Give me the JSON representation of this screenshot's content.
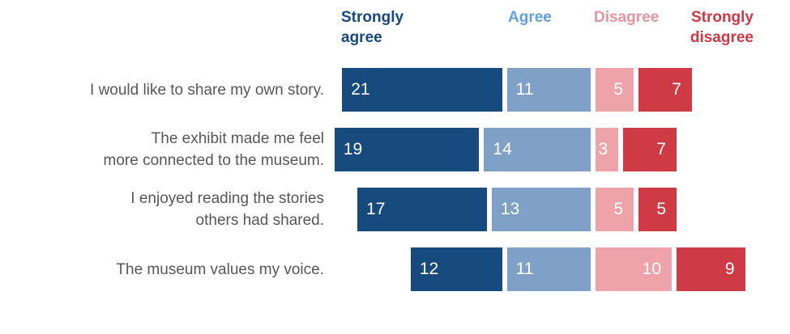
{
  "chart_data": {
    "type": "bar",
    "variant": "horizontal-diverging-stacked-likert",
    "title": "",
    "xlabel": "",
    "ylabel": "",
    "grid": false,
    "legend_position": "top",
    "value_labels_inside_bars": true,
    "categories": [
      "I would like to share my own story.",
      "The exhibit made me feel more connected to the museum.",
      "I enjoyed reading the stories others had shared.",
      "The museum values my voice."
    ],
    "categories_lines": [
      [
        "I would like to share my own story."
      ],
      [
        "The exhibit made me feel",
        "more connected to the museum."
      ],
      [
        "I enjoyed reading the stories",
        "others had shared."
      ],
      [
        "The museum values my voice."
      ]
    ],
    "series": [
      {
        "name": "Strongly agree",
        "side": "agree",
        "color": "#174A7D",
        "values": [
          21,
          19,
          17,
          12
        ]
      },
      {
        "name": "Agree",
        "side": "agree",
        "color": "#7FA0C7",
        "values": [
          11,
          14,
          13,
          11
        ]
      },
      {
        "name": "Disagree",
        "side": "disagree",
        "color": "#EEA2AA",
        "values": [
          5,
          3,
          5,
          10
        ]
      },
      {
        "name": "Strongly disagree",
        "side": "disagree",
        "color": "#CF3B44",
        "values": [
          7,
          7,
          5,
          9
        ]
      }
    ],
    "legend": [
      {
        "label": "Strongly agree",
        "lines": [
          "Strongly",
          "agree"
        ],
        "text_color": "#17497E"
      },
      {
        "label": "Agree",
        "lines": [
          "Agree"
        ],
        "text_color": "#5FA0E6"
      },
      {
        "label": "Disagree",
        "lines": [
          "Disagree"
        ],
        "text_color": "#E8949E"
      },
      {
        "label": "Strongly disagree",
        "lines": [
          "Strongly",
          "disagree"
        ],
        "text_color": "#CC3944"
      }
    ]
  },
  "colors": {
    "background": "#FFFFFF",
    "category_text": "#575757",
    "value_text": "#FFFFFF"
  }
}
